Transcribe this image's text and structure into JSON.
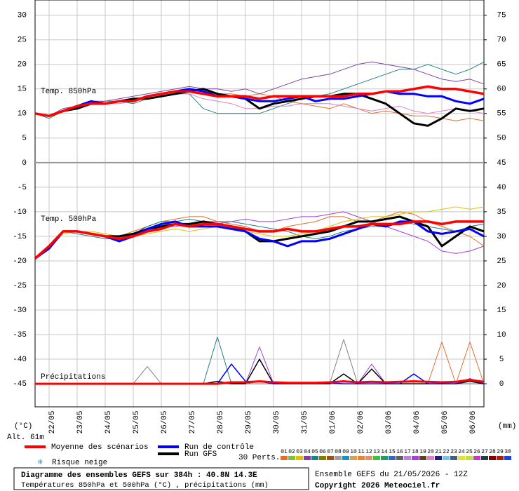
{
  "header": {
    "altitude": "Alt. 61m"
  },
  "axes": {
    "xlim": [
      0,
      384
    ],
    "xticks": [
      {
        "value": 12,
        "label": "22/05"
      },
      {
        "value": 36,
        "label": "23/05"
      },
      {
        "value": 60,
        "label": "24/05"
      },
      {
        "value": 84,
        "label": "25/05"
      },
      {
        "value": 108,
        "label": "26/05"
      },
      {
        "value": 132,
        "label": "27/05"
      },
      {
        "value": 156,
        "label": "28/05"
      },
      {
        "value": 180,
        "label": "29/05"
      },
      {
        "value": 204,
        "label": "30/05"
      },
      {
        "value": 228,
        "label": "31/05"
      },
      {
        "value": 252,
        "label": "01/06"
      },
      {
        "value": 276,
        "label": "02/06"
      },
      {
        "value": 300,
        "label": "03/06"
      },
      {
        "value": 324,
        "label": "04/06"
      },
      {
        "value": 348,
        "label": "05/06"
      },
      {
        "value": 372,
        "label": "06/06"
      }
    ],
    "ylim": [
      -49.7,
      33.1
    ],
    "yticks": [
      30,
      25,
      20,
      15,
      10,
      5,
      0,
      -5,
      -10,
      -15,
      -20,
      -25,
      -30,
      -35,
      -40,
      -45
    ],
    "y2lim": [
      -4.7,
      78.1
    ],
    "y2ticks": [
      75,
      70,
      65,
      60,
      55,
      50,
      45,
      40,
      35,
      30,
      25,
      20,
      15,
      10,
      5,
      0
    ],
    "ylabel": "(°C)",
    "y2label": "(mm)",
    "grid": true
  },
  "x": [
    0,
    12,
    24,
    36,
    48,
    60,
    72,
    84,
    96,
    108,
    120,
    132,
    144,
    156,
    168,
    180,
    192,
    204,
    216,
    228,
    240,
    252,
    264,
    276,
    288,
    300,
    312,
    324,
    336,
    348,
    360,
    372,
    384
  ],
  "chart_data": [
    {
      "type": "line",
      "title": "Temp. 850hPa",
      "series": [
        {
          "color": "#e07030",
          "width": 1,
          "values": [
            10,
            9.5,
            10.5,
            11.5,
            12,
            12,
            12.5,
            13,
            13.5,
            14,
            14.5,
            15,
            14.5,
            14,
            14,
            13.5,
            14,
            13.5,
            12.5,
            12,
            11.5,
            11,
            12,
            11,
            10,
            10.5,
            10,
            9.5,
            9.5,
            9,
            8.5,
            9,
            8.5
          ]
        },
        {
          "color": "#208080",
          "width": 1,
          "values": [
            10,
            9,
            10.5,
            11.5,
            12,
            12.5,
            12.5,
            12,
            13,
            13.5,
            14,
            14,
            11,
            10,
            10,
            10,
            10,
            11,
            12,
            13,
            13.5,
            14,
            15,
            16,
            17,
            18,
            19,
            19,
            20,
            19,
            18,
            19,
            20.5
          ]
        },
        {
          "color": "#8040a0",
          "width": 1,
          "values": [
            10,
            9.5,
            11,
            11.5,
            12.5,
            12.5,
            13,
            13.5,
            14,
            14.5,
            15,
            15.5,
            15,
            15,
            14.5,
            15,
            14,
            15,
            16,
            17,
            17.5,
            18,
            19,
            20,
            20.5,
            20,
            19.5,
            19,
            18,
            17,
            16.5,
            17,
            16
          ]
        },
        {
          "color": "#e080c0",
          "width": 1,
          "values": [
            10,
            9.5,
            10.5,
            11.5,
            12,
            12,
            12,
            12.5,
            13,
            13.5,
            14,
            14,
            13,
            12.5,
            12,
            11,
            11,
            11.5,
            11.5,
            12,
            12,
            12,
            11.5,
            11,
            10.5,
            11,
            11.5,
            10.5,
            10,
            10.5,
            11,
            10.5,
            10
          ]
        },
        {
          "name": "Run GFS",
          "color": "#000000",
          "width": 3,
          "values": [
            10,
            9.5,
            10.5,
            11,
            12,
            12,
            12.5,
            13,
            13,
            13.5,
            14,
            14.5,
            15,
            14,
            13.5,
            13,
            11,
            12,
            12.5,
            13,
            13.5,
            13.5,
            14,
            14,
            13,
            12,
            10,
            8,
            7.5,
            9,
            11,
            10.5,
            11
          ]
        },
        {
          "name": "Run de contrôle",
          "color": "#0000ff",
          "width": 3,
          "values": [
            10,
            9.5,
            10.5,
            11.5,
            12.5,
            12,
            12.5,
            12.5,
            13.5,
            14,
            14.5,
            15,
            14.5,
            13.5,
            13.5,
            13,
            12.5,
            12.5,
            13,
            13.5,
            12.5,
            13,
            13,
            13.5,
            14,
            14.5,
            14,
            14,
            13.5,
            13.5,
            12.5,
            12,
            13
          ]
        },
        {
          "name": "Moyenne des scénarios",
          "color": "#ff0000",
          "width": 3.5,
          "values": [
            10,
            9.5,
            10.5,
            11.5,
            12,
            12,
            12.5,
            12.5,
            13.5,
            14,
            14.5,
            14.5,
            14,
            13.5,
            13.5,
            13.5,
            13,
            13.5,
            13.5,
            13.5,
            13.5,
            13.5,
            13.5,
            14,
            14,
            14.5,
            14.5,
            15,
            15.5,
            15,
            15,
            14.5,
            14
          ]
        }
      ]
    },
    {
      "type": "line",
      "title": "Temp. 500hPa",
      "series": [
        {
          "color": "#e07030",
          "width": 1,
          "values": [
            -19.5,
            -17,
            -14,
            -14,
            -14.5,
            -15,
            -15,
            -14,
            -13,
            -12,
            -11.5,
            -11,
            -11,
            -12,
            -12.5,
            -13,
            -14,
            -14,
            -13,
            -12.5,
            -12,
            -11,
            -11,
            -12,
            -12,
            -11,
            -10,
            -10.5,
            -12,
            -13,
            -14,
            -15,
            -17
          ]
        },
        {
          "color": "#208080",
          "width": 1,
          "values": [
            -19.5,
            -17,
            -14,
            -14.5,
            -15,
            -15.5,
            -15.5,
            -14.5,
            -13,
            -12,
            -12,
            -11.5,
            -12,
            -12.5,
            -12,
            -12.5,
            -13,
            -13.5,
            -14,
            -15,
            -15.5,
            -15,
            -14,
            -13.5,
            -13,
            -13,
            -12,
            -12.5,
            -13,
            -13.5,
            -14,
            -13,
            -12.5
          ]
        },
        {
          "color": "#a040e0",
          "width": 1,
          "values": [
            -19.5,
            -17,
            -14,
            -14,
            -14.5,
            -15,
            -15.5,
            -15,
            -14,
            -13,
            -13,
            -12.5,
            -12,
            -12,
            -12,
            -11.5,
            -12,
            -12,
            -11.5,
            -11,
            -11,
            -10.5,
            -10,
            -11,
            -12,
            -13,
            -14,
            -15,
            -16,
            -18,
            -18.5,
            -18,
            -17
          ]
        },
        {
          "color": "#e0c000",
          "width": 1,
          "values": [
            -19.5,
            -17.5,
            -14.5,
            -14,
            -14,
            -14.5,
            -15,
            -15,
            -14.5,
            -14,
            -13.5,
            -14,
            -13.5,
            -13,
            -13.5,
            -14,
            -14.5,
            -15,
            -15,
            -14.5,
            -14,
            -13,
            -12,
            -11.5,
            -11,
            -11,
            -10.5,
            -10,
            -10,
            -9.5,
            -9,
            -9.5,
            -9
          ]
        },
        {
          "color": "#000000",
          "width": 3,
          "values": [
            -19.5,
            -17,
            -14,
            -14,
            -14.5,
            -15,
            -15,
            -14.5,
            -13.5,
            -13,
            -12.5,
            -12.5,
            -12,
            -12.5,
            -13,
            -14,
            -16,
            -16,
            -15.5,
            -15,
            -14.5,
            -14,
            -13,
            -12,
            -12,
            -11.5,
            -11,
            -12,
            -13,
            -17,
            -15,
            -13,
            -14
          ]
        },
        {
          "color": "#0000ff",
          "width": 3,
          "values": [
            -19.5,
            -17.5,
            -14,
            -14,
            -14.5,
            -15,
            -16,
            -15,
            -13.5,
            -12.5,
            -12,
            -13,
            -13,
            -13,
            -13.5,
            -14,
            -15.5,
            -16,
            -17,
            -16,
            -16,
            -15.5,
            -14.5,
            -13.5,
            -12.5,
            -13,
            -12,
            -12,
            -14,
            -14.5,
            -14,
            -13.5,
            -15
          ]
        },
        {
          "color": "#ff0000",
          "width": 3.5,
          "values": [
            -19.5,
            -17,
            -14,
            -14,
            -14.5,
            -15,
            -15.5,
            -15,
            -14,
            -13.5,
            -12.5,
            -13,
            -12.5,
            -12.5,
            -13,
            -13.5,
            -14,
            -14,
            -13.5,
            -14,
            -14,
            -13.5,
            -13,
            -13,
            -12.5,
            -12.5,
            -12.5,
            -12,
            -12,
            -12.5,
            -12,
            -12,
            -12
          ]
        }
      ]
    },
    {
      "type": "line",
      "title": "Précipitations",
      "series": [
        {
          "color": "#208080",
          "width": 1,
          "axis": "y2",
          "values": [
            0,
            0,
            0,
            0,
            0,
            0,
            0,
            0,
            0,
            0,
            0,
            0,
            0,
            9.5,
            0,
            0,
            0.5,
            0,
            0,
            0,
            0,
            0,
            0,
            0,
            0,
            0,
            0,
            0,
            0,
            0,
            0,
            0,
            0
          ]
        },
        {
          "color": "#a040e0",
          "width": 1,
          "axis": "y2",
          "values": [
            0,
            0,
            0,
            0,
            0,
            0,
            0,
            0,
            0,
            0,
            0,
            0,
            0,
            0,
            0,
            0,
            7.5,
            0,
            0,
            0,
            0,
            0,
            0,
            0,
            4,
            0,
            0,
            0,
            0,
            0,
            0,
            0,
            0
          ]
        },
        {
          "color": "#e07030",
          "width": 1,
          "axis": "y2",
          "values": [
            0,
            0,
            0,
            0,
            0,
            0,
            0,
            0,
            0,
            0,
            0,
            0,
            0,
            0,
            0,
            0,
            0,
            0,
            0,
            0,
            0,
            0,
            0,
            0,
            0,
            0,
            0,
            0,
            0,
            8.5,
            0,
            8.5,
            0
          ]
        },
        {
          "color": "#808080",
          "width": 1,
          "axis": "y2",
          "values": [
            0,
            0,
            0,
            0,
            0,
            0,
            0,
            0,
            3.5,
            0,
            0,
            0,
            0,
            0,
            0,
            0,
            0,
            0,
            0,
            0,
            0,
            0,
            9,
            0,
            0,
            0,
            0,
            0,
            0,
            0,
            0,
            0,
            0
          ]
        },
        {
          "color": "#000000",
          "width": 1.5,
          "axis": "y2",
          "values": [
            0,
            0,
            0,
            0,
            0,
            0,
            0,
            0,
            0,
            0,
            0,
            0,
            0,
            0.5,
            0,
            0,
            5,
            0,
            0,
            0,
            0,
            0,
            2,
            0,
            3,
            0,
            0,
            0,
            0,
            0,
            0,
            0.5,
            0
          ]
        },
        {
          "color": "#0000ff",
          "width": 1.5,
          "axis": "y2",
          "values": [
            0,
            0,
            0,
            0,
            0,
            0,
            0,
            0,
            0,
            0,
            0,
            0,
            0,
            0,
            4,
            0.5,
            0.5,
            0,
            0,
            0,
            0,
            0.2,
            0,
            0,
            0,
            0,
            0,
            2,
            0,
            0,
            0,
            1,
            0
          ]
        },
        {
          "color": "#ff0000",
          "width": 3,
          "axis": "y2",
          "values": [
            0,
            0,
            0,
            0,
            0,
            0,
            0,
            0,
            0,
            0,
            0,
            0,
            0,
            0,
            0.3,
            0.3,
            0.5,
            0.3,
            0.2,
            0.2,
            0.2,
            0.3,
            0.5,
            0.3,
            0.4,
            0.3,
            0.4,
            0.5,
            0.4,
            0.3,
            0.4,
            0.8,
            0.4
          ]
        }
      ]
    }
  ],
  "legend": {
    "snow": "Risque neige",
    "perts_label": "30 Perts.",
    "perts": [
      {
        "label": "01",
        "color": "#e07030"
      },
      {
        "label": "02",
        "color": "#80c040"
      },
      {
        "label": "03",
        "color": "#e0c000"
      },
      {
        "label": "04",
        "color": "#8040a0"
      },
      {
        "label": "05",
        "color": "#208080"
      },
      {
        "label": "06",
        "color": "#808000"
      },
      {
        "label": "07",
        "color": "#a05020"
      },
      {
        "label": "08",
        "color": "#a0a0a0"
      },
      {
        "label": "09",
        "color": "#2090c0"
      },
      {
        "label": "10",
        "color": "#d0a060"
      },
      {
        "label": "11",
        "color": "#f08030"
      },
      {
        "label": "12",
        "color": "#e09070"
      },
      {
        "label": "13",
        "color": "#40c040"
      },
      {
        "label": "14",
        "color": "#20a060"
      },
      {
        "label": "15",
        "color": "#4060c0"
      },
      {
        "label": "16",
        "color": "#606060"
      },
      {
        "label": "17",
        "color": "#c080e0"
      },
      {
        "label": "18",
        "color": "#a040e0"
      },
      {
        "label": "19",
        "color": "#604020"
      },
      {
        "label": "20",
        "color": "#e080c0"
      },
      {
        "label": "21",
        "color": "#202080"
      },
      {
        "label": "22",
        "color": "#80c0e0"
      },
      {
        "label": "23",
        "color": "#406080"
      },
      {
        "label": "24",
        "color": "#e0e040"
      },
      {
        "label": "25",
        "color": "#c0e040"
      },
      {
        "label": "26",
        "color": "#c040c0"
      },
      {
        "label": "27",
        "color": "#204040"
      },
      {
        "label": "28",
        "color": "#800000"
      },
      {
        "label": "29",
        "color": "#a02020"
      },
      {
        "label": "30",
        "color": "#2040e0"
      }
    ]
  },
  "footer": {
    "title": "Diagramme des ensembles GEFS sur 384h : 40.8N 14.3E",
    "subtitle": "Températures 850hPa et 500hPa (°C) , précipitations (mm)",
    "run": "Ensemble GEFS du 21/05/2026 - 12Z",
    "copyright": "Copyright 2026 Meteociel.fr"
  }
}
